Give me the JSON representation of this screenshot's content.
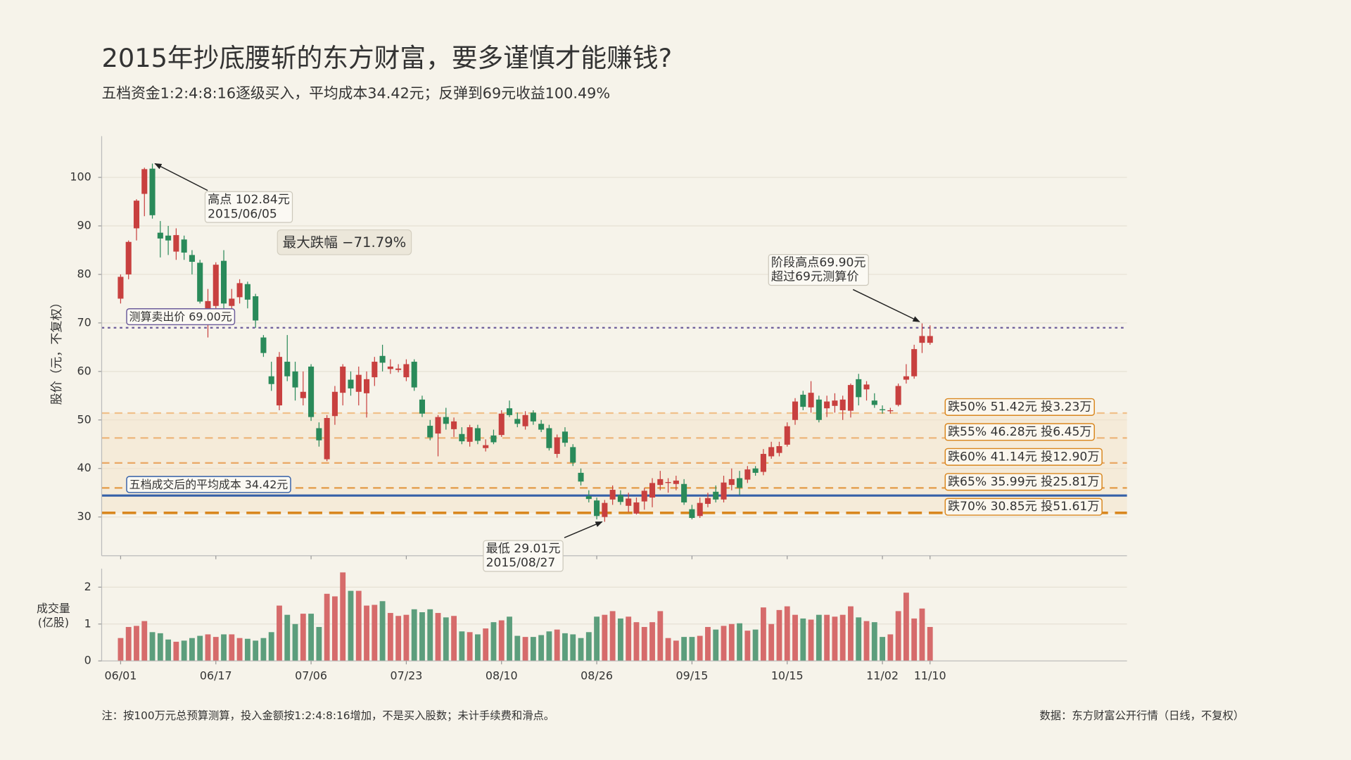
{
  "chart_data": [
    {
      "type": "candlestick",
      "title": "2015年抄底腰斩的东方财富，要多谨慎才能赚钱?",
      "subtitle": "五档资金1:2:4:8:16逐级买入，平均成本34.42元；反弹到69元收益100.49%",
      "ylabel": "股价（元，不复权）",
      "up_color": "#c8403f",
      "down_color": "#2a8a5a",
      "ylim": [
        22,
        108.5
      ],
      "yticks": [
        30,
        40,
        50,
        60,
        70,
        80,
        90,
        100
      ],
      "grid": true,
      "open": [
        75,
        80,
        89.5,
        96.6,
        101.8,
        88.6,
        88,
        84.7,
        87.2,
        84,
        82.4,
        73,
        73.5,
        82.8,
        73.5,
        75.3,
        78,
        75.5,
        67,
        59,
        53,
        62,
        60,
        54.5,
        61,
        48.3,
        41.9,
        50.8,
        55.6,
        58.3,
        55.8,
        55.5,
        58.8,
        63.2,
        60.5,
        60.3,
        58.8,
        62,
        54.2,
        48.8,
        47.2,
        50.6,
        48.1,
        47.1,
        45.5,
        48.3,
        44.2,
        46.8,
        46.9,
        52.4,
        50.2,
        48.7,
        51.5,
        49.2,
        48.3,
        43,
        47.6,
        44.4,
        39.1,
        34.3,
        33.4,
        30,
        33.6,
        34.5,
        32.3,
        30.7,
        33.2,
        34,
        36.6,
        37,
        36.8,
        36.8,
        31.6,
        30.2,
        32.7,
        35.2,
        33.6,
        36.6,
        38,
        37.7,
        40,
        39.3,
        42.5,
        43.2,
        44.9,
        50,
        55.2,
        52.6,
        54.2,
        52.4,
        52.9,
        52,
        51.9,
        58.4,
        56.3,
        54,
        52.2,
        51.8,
        53.1,
        58.3,
        59,
        65.9,
        65.9
      ],
      "high": [
        80,
        87,
        95.5,
        102,
        102.84,
        91,
        90,
        89.5,
        88,
        85,
        83,
        77,
        82.5,
        85,
        77,
        79,
        78.5,
        76,
        67.5,
        62,
        64,
        67.5,
        62,
        60,
        61.5,
        49.5,
        51,
        57,
        61.5,
        60,
        61,
        60,
        63,
        65.5,
        62.5,
        61.5,
        62.5,
        62.5,
        55,
        50,
        51,
        52.5,
        50.5,
        48.5,
        49,
        49,
        46,
        48,
        52,
        54,
        51.5,
        51.8,
        52,
        50,
        49,
        47,
        48.5,
        45,
        40,
        35.5,
        34,
        33.5,
        36.5,
        35.5,
        35,
        34,
        36,
        38,
        39.5,
        38,
        38.5,
        37.8,
        32.5,
        34,
        35,
        36.5,
        38.5,
        40,
        39.5,
        40.5,
        40.5,
        44,
        45.5,
        45.5,
        49.5,
        54.5,
        56,
        58,
        55,
        55,
        55.5,
        55,
        57.5,
        59.5,
        58,
        55.5,
        53,
        52.5,
        57.5,
        61.5,
        65.5,
        69.9,
        69.5
      ],
      "low": [
        74,
        79,
        87,
        92,
        91.5,
        83.5,
        84,
        83,
        83,
        80,
        74,
        67,
        70,
        73,
        72,
        74,
        73,
        69,
        63,
        56,
        52,
        58,
        54,
        53,
        49.8,
        44.5,
        41.5,
        49,
        53,
        55,
        53,
        50.5,
        57,
        60,
        59.5,
        59.8,
        58,
        56,
        50.6,
        45.8,
        42.5,
        48,
        46.5,
        45,
        44.5,
        45,
        43.5,
        45,
        46.5,
        50.6,
        48.5,
        48,
        49,
        47.5,
        43.7,
        42.2,
        44.5,
        40.5,
        36.5,
        33,
        29.5,
        29.01,
        32.5,
        32.5,
        31,
        30.5,
        31.5,
        32,
        35.5,
        35,
        35.5,
        32.5,
        29.5,
        29.8,
        32,
        33,
        33,
        35.5,
        34.5,
        37,
        38.5,
        38.6,
        42,
        42.5,
        44.5,
        49,
        52,
        51.5,
        49.5,
        50.6,
        51.5,
        50,
        50.5,
        53,
        54,
        52.5,
        51.3,
        51.3,
        52.8,
        57.5,
        58.5,
        63.8,
        65.5
      ],
      "close": [
        79.5,
        86.7,
        95.2,
        101.7,
        92.2,
        87.4,
        87,
        88.1,
        84.5,
        82.6,
        74.4,
        74.5,
        82,
        74,
        75,
        78.2,
        74.8,
        70.5,
        63.8,
        57.4,
        63,
        59,
        56.7,
        55.8,
        50.6,
        45.8,
        50.4,
        55.8,
        61,
        56.5,
        59.3,
        58.4,
        62,
        61.8,
        61,
        60.6,
        61.5,
        56.7,
        51.3,
        46.4,
        50.6,
        49.2,
        49.7,
        45.6,
        48.5,
        45.7,
        44.8,
        45.4,
        51.3,
        51,
        49.2,
        51,
        49.7,
        48,
        44.2,
        46.4,
        45.3,
        41.2,
        37.3,
        33.7,
        30.2,
        32.9,
        35.6,
        33.1,
        33.8,
        33,
        35.4,
        37,
        37.8,
        37.2,
        37.5,
        33,
        29.8,
        32.9,
        33.9,
        33.6,
        37.1,
        37.8,
        36,
        39.8,
        39.1,
        43,
        44.4,
        44.6,
        48.7,
        53.8,
        52.7,
        55.6,
        50,
        53.8,
        54,
        54.2,
        57.2,
        54.7,
        57.3,
        53.1,
        52,
        52,
        57,
        59,
        64.6,
        67.3,
        67.3
      ],
      "categories": [
        "06/01",
        null,
        null,
        null,
        null,
        null,
        null,
        null,
        null,
        null,
        null,
        null,
        "06/17",
        null,
        null,
        null,
        null,
        null,
        null,
        null,
        null,
        null,
        null,
        null,
        "07/06",
        null,
        null,
        null,
        null,
        null,
        null,
        null,
        null,
        null,
        null,
        null,
        "07/23",
        null,
        null,
        null,
        null,
        null,
        null,
        null,
        null,
        null,
        null,
        null,
        "08/10",
        null,
        null,
        null,
        null,
        null,
        null,
        null,
        null,
        null,
        null,
        null,
        "08/26",
        null,
        null,
        null,
        null,
        null,
        null,
        null,
        null,
        null,
        null,
        null,
        "09/15",
        null,
        null,
        null,
        null,
        null,
        null,
        null,
        null,
        null,
        null,
        null,
        "10/15",
        null,
        null,
        null,
        null,
        null,
        null,
        null,
        null,
        null,
        null,
        null,
        "11/02",
        null,
        null,
        null,
        null,
        null,
        "11/10"
      ],
      "reference_lines": [
        {
          "value": 69,
          "label": "测算卖出价  69.00元",
          "color": "#6b5b9a",
          "style": "dotted"
        },
        {
          "value": 34.42,
          "label": "五档成交后的平均成本  34.42元",
          "color": "#3560a8",
          "style": "solid"
        },
        {
          "value": 51.42,
          "label": "跌50%  51.42元  投3.23万",
          "color": "#f0c08a",
          "style": "dashed"
        },
        {
          "value": 46.28,
          "label": "跌55%  46.28元  投6.45万",
          "color": "#edb57a",
          "style": "dashed"
        },
        {
          "value": 41.14,
          "label": "跌60%  41.14元  投12.90万",
          "color": "#eaa865",
          "style": "dashed"
        },
        {
          "value": 35.99,
          "label": "跌65%  35.99元  投25.81万",
          "color": "#e39a45",
          "style": "dashed"
        },
        {
          "value": 30.85,
          "label": "跌70%  30.85元  投51.61万",
          "color": "#d9871f",
          "style": "dashed"
        }
      ],
      "annotations": {
        "high": [
          "高点 102.84元",
          "2015/06/05"
        ],
        "drawdown": "最大跌幅  −71.79%",
        "rebound": [
          "阶段高点69.90元",
          "超过69元测算价"
        ],
        "low": [
          "最低 29.01元",
          "2015/08/27"
        ]
      },
      "note": "注：按100万元总预算测算，投入金额按1:2:4:8:16增加，不是买入股数；未计手续费和滑点。",
      "source": "数据：东方财富公开行情（日线，不复权）"
    },
    {
      "type": "bar",
      "ylabel": [
        "成交量",
        "(亿股)"
      ],
      "up_color": "#d66b6b",
      "down_color": "#5c9e7c",
      "ylim": [
        0,
        2.5
      ],
      "yticks": [
        0,
        1,
        2
      ],
      "grid": true,
      "values": [
        0.62,
        0.92,
        0.95,
        1.08,
        0.78,
        0.75,
        0.58,
        0.52,
        0.55,
        0.62,
        0.68,
        0.72,
        0.65,
        0.72,
        0.72,
        0.62,
        0.6,
        0.55,
        0.62,
        0.78,
        1.5,
        1.25,
        1.0,
        1.28,
        1.28,
        0.92,
        1.82,
        1.75,
        2.4,
        1.9,
        1.9,
        1.5,
        1.52,
        1.62,
        1.3,
        1.22,
        1.25,
        1.4,
        1.32,
        1.4,
        1.3,
        1.18,
        1.22,
        0.8,
        0.78,
        0.72,
        0.88,
        1.05,
        1.1,
        1.2,
        0.68,
        0.65,
        0.65,
        0.7,
        0.8,
        0.85,
        0.75,
        0.72,
        0.62,
        0.78,
        1.2,
        1.25,
        1.35,
        1.15,
        1.2,
        1.05,
        0.92,
        1.05,
        1.35,
        0.62,
        0.55,
        0.65,
        0.65,
        0.68,
        0.92,
        0.85,
        0.95,
        1.0,
        1.02,
        0.82,
        0.85,
        1.45,
        1.0,
        1.38,
        1.48,
        1.25,
        1.15,
        1.12,
        1.25,
        1.25,
        1.2,
        1.25,
        1.48,
        1.18,
        1.08,
        1.05,
        0.65,
        0.72,
        1.35,
        1.85,
        1.15,
        1.42,
        0.92
      ]
    }
  ]
}
